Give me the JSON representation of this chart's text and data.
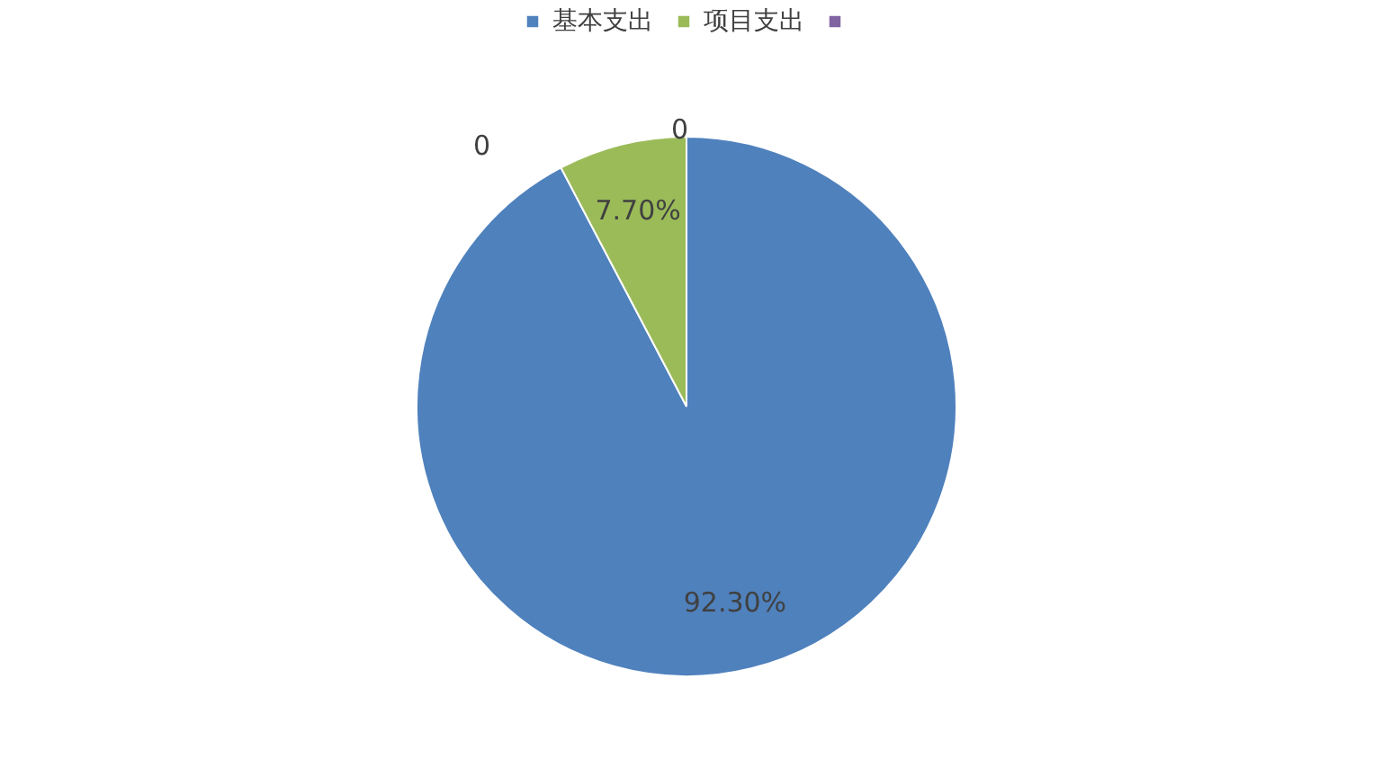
{
  "chart_data": {
    "type": "pie",
    "categories": [
      "基本支出",
      "项目支出",
      null
    ],
    "values": [
      92.3,
      7.7,
      0
    ],
    "colors": [
      "#4f81bd",
      "#9bbb59",
      "#8064a2"
    ],
    "value_labels": [
      "92.30%",
      "7.70%",
      null
    ],
    "annotations": [
      "0",
      "0"
    ],
    "legend": "top"
  }
}
